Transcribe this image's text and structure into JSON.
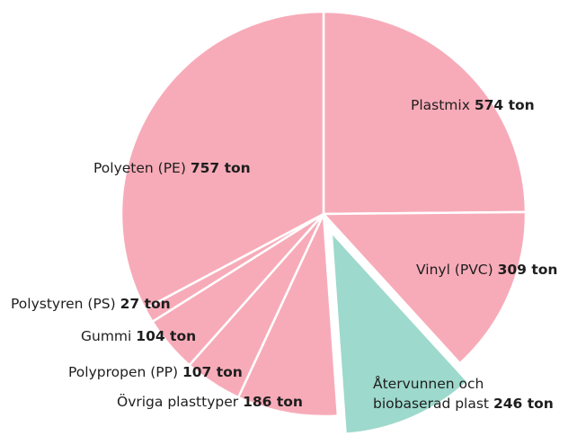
{
  "chart_data": {
    "type": "pie",
    "categories": [
      "Plastmix",
      "Vinyl (PVC)",
      "Återvunnen och\nbiobaserad plast",
      "Övriga plasttyper",
      "Polypropen (PP)",
      "Gummi",
      "Polystyren (PS)",
      "Polyeten (PE)"
    ],
    "values": [
      574,
      309,
      246,
      186,
      107,
      104,
      27,
      757
    ],
    "value_labels": [
      "574 ton",
      "309 ton",
      "246 ton",
      "186 ton",
      "107 ton",
      "104 ton",
      "27 ton",
      "757 ton"
    ],
    "colors": [
      "#f7abb8",
      "#f7abb8",
      "#9dd9cc",
      "#f7abb8",
      "#f7abb8",
      "#f7abb8",
      "#f7abb8",
      "#f7abb8"
    ],
    "exploded_index": 2
  }
}
